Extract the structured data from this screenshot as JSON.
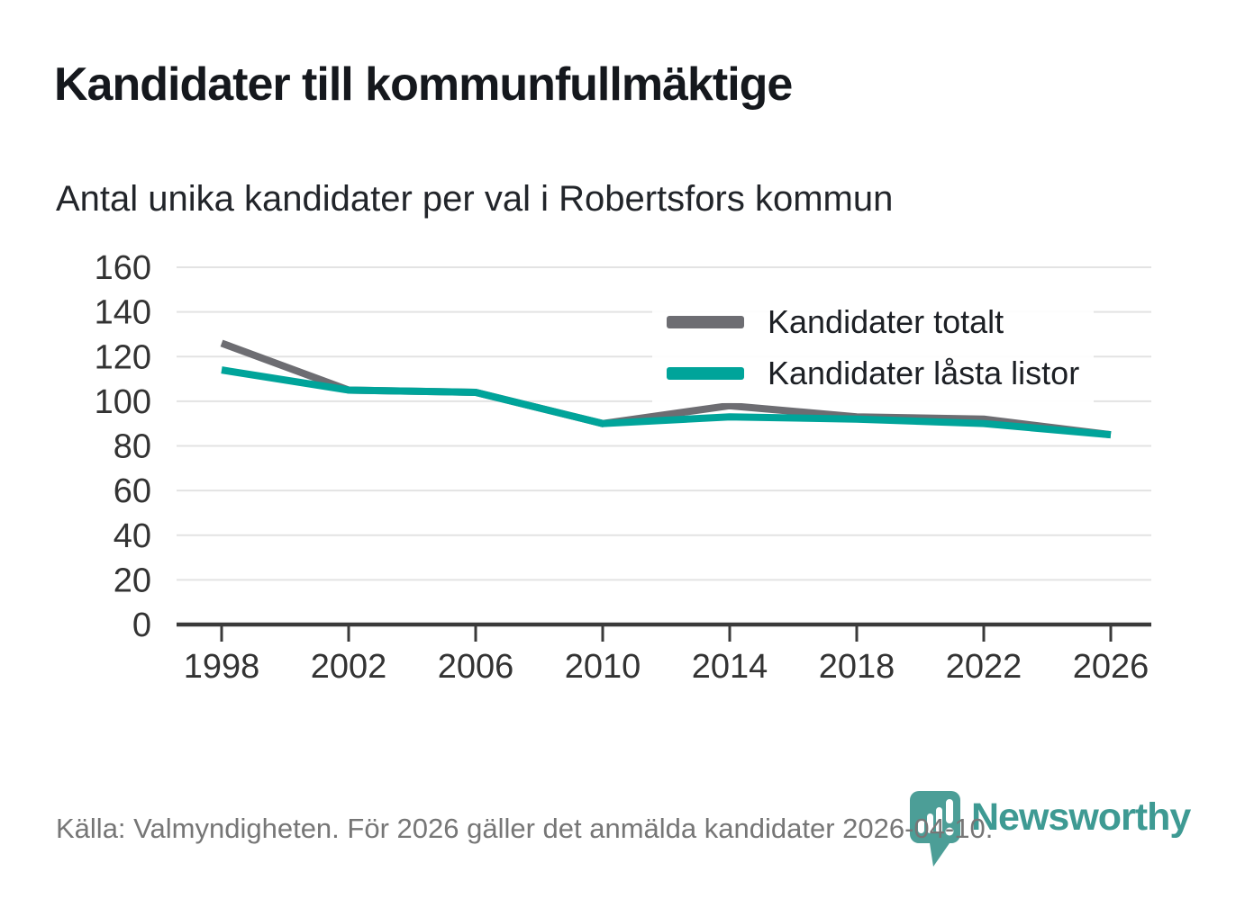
{
  "chart_data": {
    "type": "line",
    "title": "Kandidater till kommunfullmäktige",
    "subtitle": "Antal unika kandidater per val i Robertsfors kommun",
    "x": [
      1998,
      2002,
      2006,
      2010,
      2014,
      2018,
      2022,
      2026
    ],
    "series": [
      {
        "name": "Kandidater totalt",
        "color": "#6d6d72",
        "values": [
          126,
          105,
          104,
          90,
          98,
          93,
          92,
          85
        ]
      },
      {
        "name": "Kandidater låsta listor",
        "color": "#00a49a",
        "values": [
          114,
          105,
          104,
          90,
          93,
          92,
          90,
          85
        ]
      }
    ],
    "xlabel": "",
    "ylabel": "",
    "ylim": [
      0,
      160
    ],
    "ytick_step": 20,
    "grid": true,
    "legend_position": "top-right",
    "source": "Källa: Valmyndigheten. För 2026 gäller det anmälda kandidater 2026-04-10."
  },
  "footer": {
    "brand": "Newsworthy"
  },
  "colors": {
    "grid": "#e3e3e3",
    "axis": "#3a3a3a",
    "tick_text": "#333333",
    "brand_teal": "#3e9a93",
    "logo_pin": "#4c9e97"
  }
}
